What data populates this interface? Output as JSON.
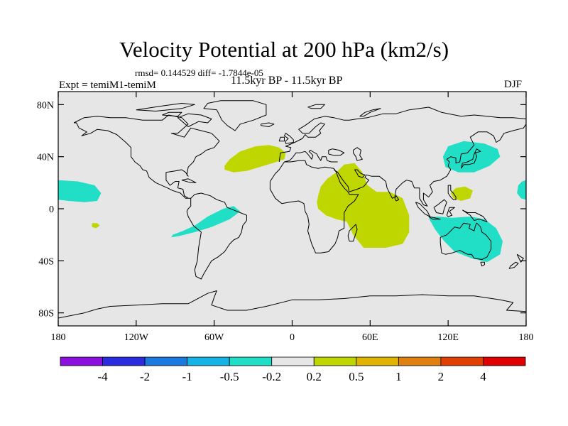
{
  "title": "Velocity Potential at 200 hPa (km2/s)",
  "stats": "rmsd= 0.144529 diff= -1.7844e-05",
  "experiment": "Expt = temiM1-temiM",
  "period": "11.5kyr BP - 11.5kyr BP",
  "season": "DJF",
  "colors": {
    "background": "#e6e6e6",
    "positive_fill": "#bfd600",
    "negative_fill": "#21dec6",
    "coast": "#000000"
  },
  "map": {
    "projection": "cylindrical-equidistant",
    "lon_range": [
      -180,
      180
    ],
    "lat_range": [
      -90,
      90
    ],
    "lon_ticks": [
      {
        "lon": -180,
        "label": "180"
      },
      {
        "lon": -120,
        "label": "120W"
      },
      {
        "lon": -60,
        "label": "60W"
      },
      {
        "lon": 0,
        "label": "0"
      },
      {
        "lon": 60,
        "label": "60E"
      },
      {
        "lon": 120,
        "label": "120E"
      },
      {
        "lon": 180,
        "label": "180"
      }
    ],
    "lat_ticks": [
      {
        "lat": 80,
        "label": "80N"
      },
      {
        "lat": 40,
        "label": "40N"
      },
      {
        "lat": 0,
        "label": "0"
      },
      {
        "lat": -40,
        "label": "40S"
      },
      {
        "lat": -80,
        "label": "80S"
      }
    ],
    "regions": [
      {
        "name": "north-atlantic-positive",
        "sign": "positive",
        "pts": [
          [
            -52,
            33
          ],
          [
            -48,
            38
          ],
          [
            -40,
            44
          ],
          [
            -28,
            48
          ],
          [
            -18,
            49
          ],
          [
            -10,
            47
          ],
          [
            -5,
            43
          ],
          [
            -6,
            38
          ],
          [
            -15,
            35
          ],
          [
            -25,
            32
          ],
          [
            -35,
            29
          ],
          [
            -45,
            28
          ],
          [
            -52,
            30
          ]
        ]
      },
      {
        "name": "africa-indian-ocean-positive",
        "sign": "positive",
        "pts": [
          [
            20,
            10
          ],
          [
            22,
            17
          ],
          [
            27,
            23
          ],
          [
            34,
            28
          ],
          [
            40,
            34
          ],
          [
            48,
            35
          ],
          [
            54,
            28
          ],
          [
            58,
            18
          ],
          [
            65,
            13
          ],
          [
            75,
            13
          ],
          [
            85,
            8
          ],
          [
            90,
            -5
          ],
          [
            90,
            -18
          ],
          [
            85,
            -27
          ],
          [
            72,
            -30
          ],
          [
            55,
            -30
          ],
          [
            47,
            -20
          ],
          [
            42,
            -10
          ],
          [
            34,
            -8
          ],
          [
            26,
            -5
          ],
          [
            20,
            0
          ],
          [
            19,
            5
          ]
        ]
      },
      {
        "name": "south-pacific-small-positive",
        "sign": "positive",
        "pts": [
          [
            -154,
            -11
          ],
          [
            -150,
            -11
          ],
          [
            -148,
            -13
          ],
          [
            -151,
            -15
          ],
          [
            -154,
            -14
          ]
        ]
      },
      {
        "name": "philippines-small-positive",
        "sign": "positive",
        "pts": [
          [
            122,
            12
          ],
          [
            126,
            16
          ],
          [
            133,
            17
          ],
          [
            139,
            14
          ],
          [
            137,
            8
          ],
          [
            130,
            6
          ],
          [
            124,
            8
          ]
        ]
      },
      {
        "name": "central-pacific-negative",
        "sign": "negative",
        "pts": [
          [
            -180,
            22
          ],
          [
            -165,
            21
          ],
          [
            -152,
            18
          ],
          [
            -147,
            12
          ],
          [
            -150,
            6
          ],
          [
            -160,
            5
          ],
          [
            -172,
            6
          ],
          [
            -180,
            7
          ]
        ]
      },
      {
        "name": "dateline-east-negative",
        "sign": "negative",
        "pts": [
          [
            180,
            22
          ],
          [
            180,
            7
          ],
          [
            176,
            8
          ],
          [
            173,
            12
          ],
          [
            174,
            18
          ],
          [
            177,
            21
          ]
        ]
      },
      {
        "name": "south-america-negative",
        "sign": "negative",
        "pts": [
          [
            -92,
            -20
          ],
          [
            -84,
            -17
          ],
          [
            -75,
            -13
          ],
          [
            -65,
            -6
          ],
          [
            -53,
            0
          ],
          [
            -45,
            2
          ],
          [
            -40,
            -2
          ],
          [
            -48,
            -8
          ],
          [
            -62,
            -14
          ],
          [
            -75,
            -18
          ],
          [
            -87,
            -21
          ],
          [
            -93,
            -22
          ]
        ]
      },
      {
        "name": "east-asia-negative",
        "sign": "negative",
        "pts": [
          [
            116,
            40
          ],
          [
            120,
            48
          ],
          [
            132,
            52
          ],
          [
            148,
            50
          ],
          [
            158,
            46
          ],
          [
            160,
            40
          ],
          [
            152,
            33
          ],
          [
            140,
            28
          ],
          [
            128,
            28
          ],
          [
            118,
            32
          ]
        ]
      },
      {
        "name": "australia-negative",
        "sign": "negative",
        "pts": [
          [
            105,
            -7
          ],
          [
            112,
            -6
          ],
          [
            123,
            -7
          ],
          [
            137,
            -6
          ],
          [
            148,
            -8
          ],
          [
            157,
            -15
          ],
          [
            162,
            -25
          ],
          [
            160,
            -35
          ],
          [
            150,
            -41
          ],
          [
            138,
            -38
          ],
          [
            125,
            -33
          ],
          [
            117,
            -25
          ],
          [
            110,
            -16
          ]
        ]
      }
    ]
  },
  "colorbar": {
    "colors": [
      "#8b10e0",
      "#2b2be0",
      "#1a7ae0",
      "#16b4e6",
      "#21dec6",
      "#e6e6e6",
      "#bfd600",
      "#e0b400",
      "#e08010",
      "#e04000",
      "#e00000"
    ],
    "labels": [
      "-4",
      "-2",
      "-1",
      "-0.5",
      "-0.2",
      "0.2",
      "0.5",
      "1",
      "2",
      "4"
    ]
  }
}
